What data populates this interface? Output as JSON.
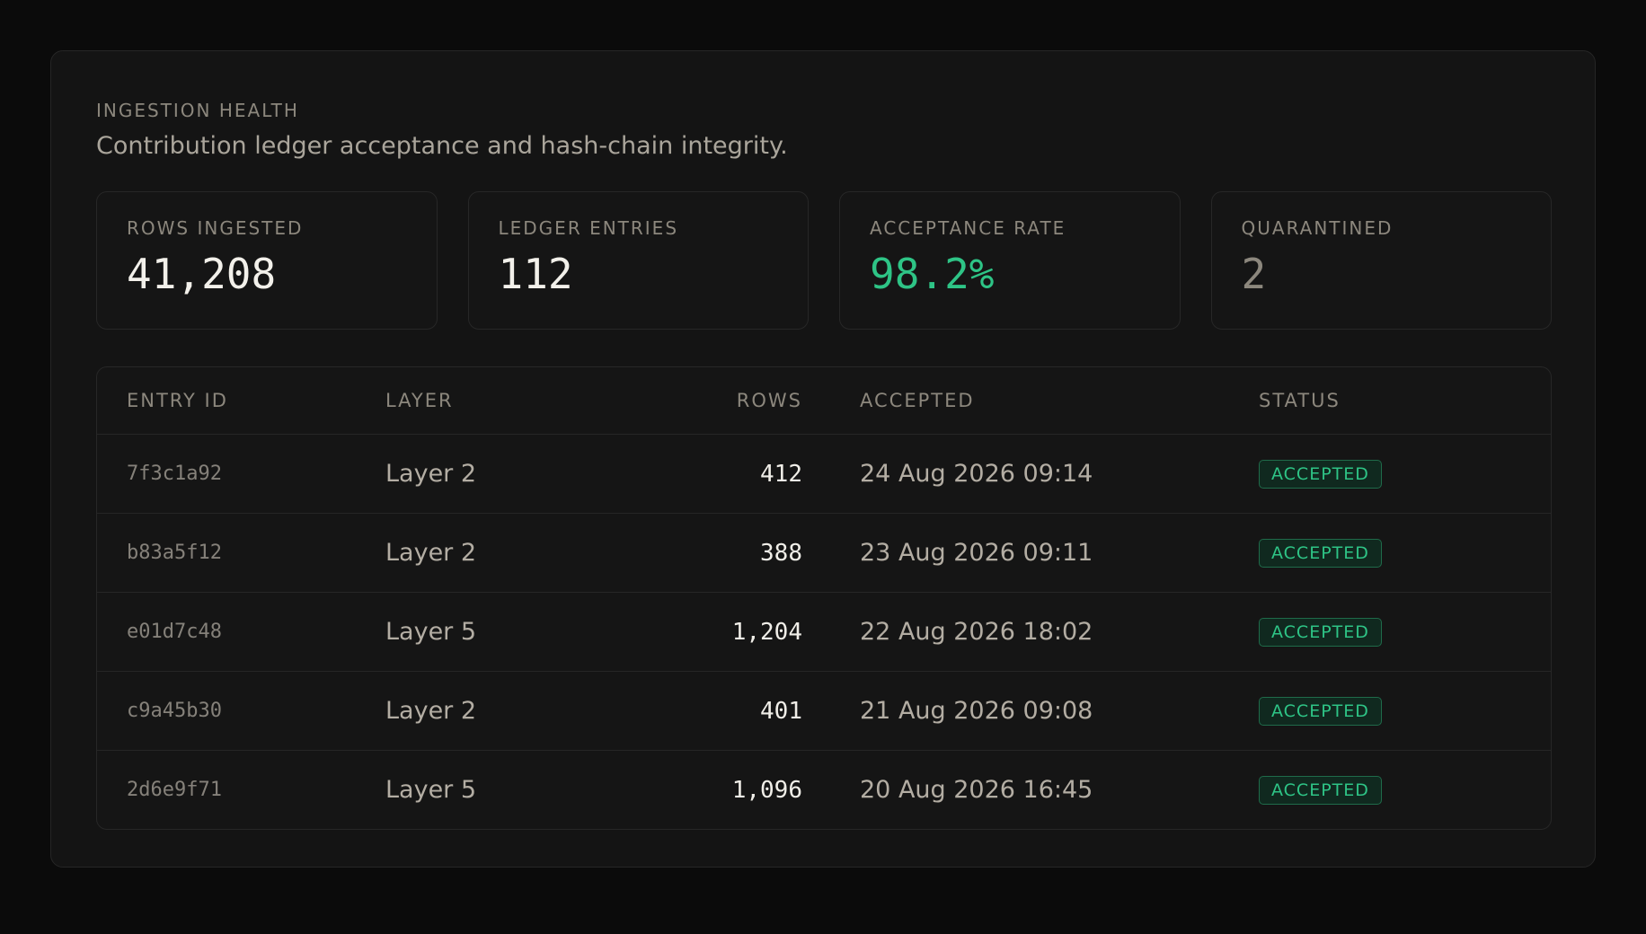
{
  "header": {
    "eyebrow": "INGESTION HEALTH",
    "subtitle": "Contribution ledger acceptance and hash-chain integrity."
  },
  "stats": [
    {
      "label": "ROWS INGESTED",
      "value": "41,208",
      "color": "#f2f0ea"
    },
    {
      "label": "LEDGER ENTRIES",
      "value": "112",
      "color": "#f2f0ea"
    },
    {
      "label": "ACCEPTANCE RATE",
      "value": "98.2%",
      "color": "#2ec486"
    },
    {
      "label": "QUARANTINED",
      "value": "2",
      "color": "#8c877d"
    }
  ],
  "table": {
    "columns": [
      "ENTRY ID",
      "LAYER",
      "ROWS",
      "ACCEPTED",
      "STATUS"
    ],
    "rows": [
      {
        "id": "7f3c1a92",
        "layer": "Layer 2",
        "rows": "412",
        "accepted": "24 Aug 2026 09:14",
        "status": "ACCEPTED"
      },
      {
        "id": "b83a5f12",
        "layer": "Layer 2",
        "rows": "388",
        "accepted": "23 Aug 2026 09:11",
        "status": "ACCEPTED"
      },
      {
        "id": "e01d7c48",
        "layer": "Layer 5",
        "rows": "1,204",
        "accepted": "22 Aug 2026 18:02",
        "status": "ACCEPTED"
      },
      {
        "id": "c9a45b30",
        "layer": "Layer 2",
        "rows": "401",
        "accepted": "21 Aug 2026 09:08",
        "status": "ACCEPTED"
      },
      {
        "id": "2d6e9f71",
        "layer": "Layer 5",
        "rows": "1,096",
        "accepted": "20 Aug 2026 16:45",
        "status": "ACCEPTED"
      }
    ]
  },
  "colors": {
    "background": "#0b0b0b",
    "panel": "#141414",
    "accent_green": "#2ec486",
    "muted": "#8c877d"
  }
}
